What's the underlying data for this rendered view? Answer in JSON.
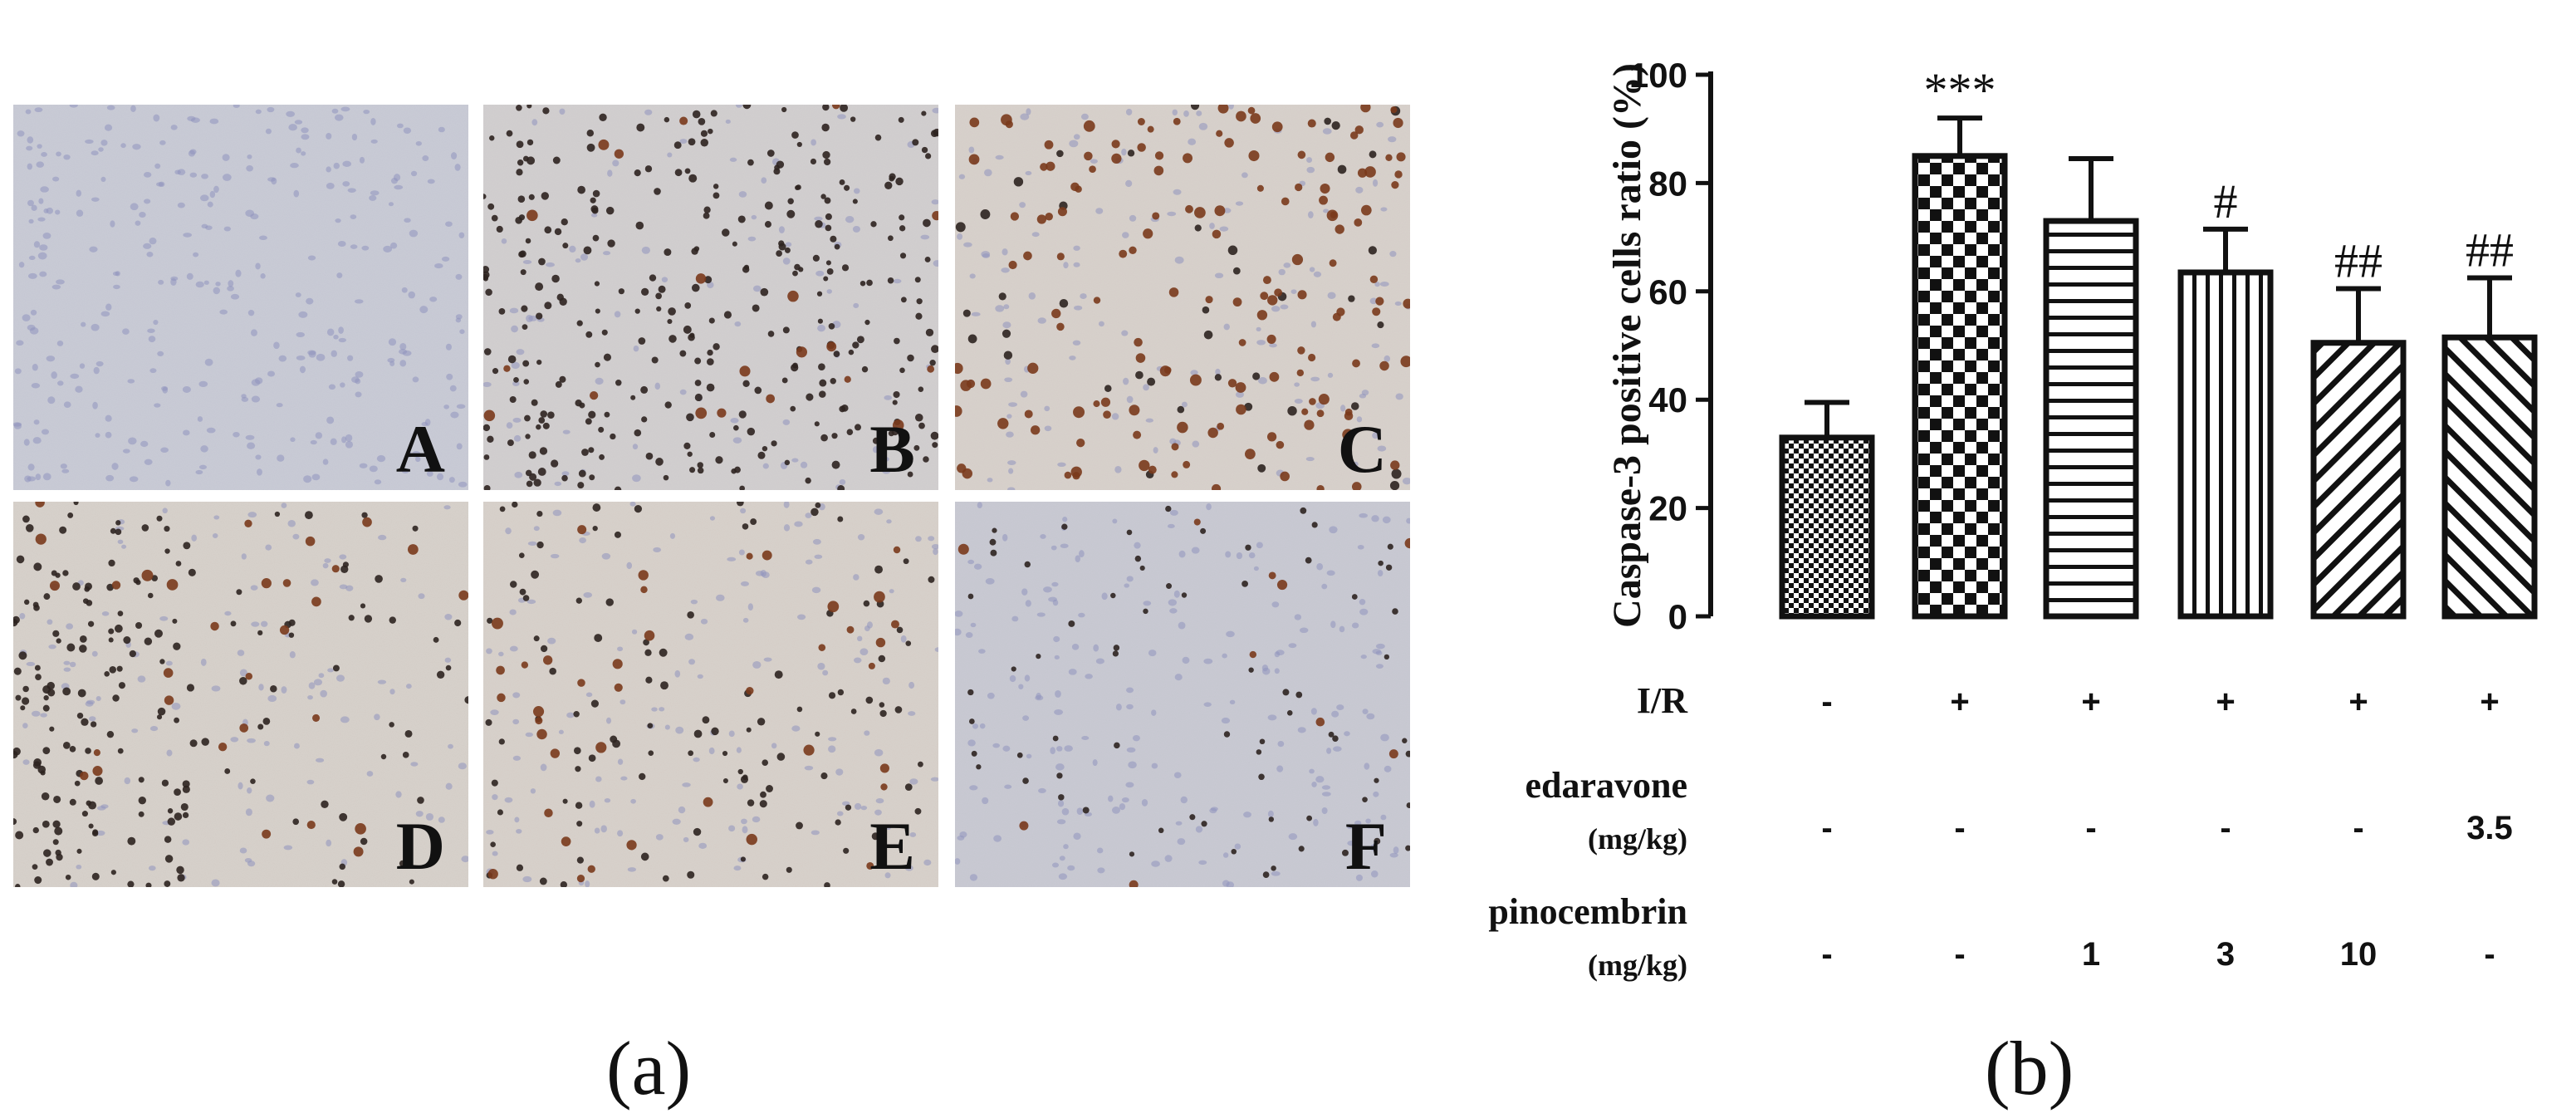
{
  "panel_a": {
    "caption": "(a)",
    "tiles": [
      {
        "letter": "A",
        "stain": "negative"
      },
      {
        "letter": "B",
        "stain": "dense-dark-nuclei"
      },
      {
        "letter": "C",
        "stain": "brown-positive"
      },
      {
        "letter": "D",
        "stain": "dark-nuclei-left"
      },
      {
        "letter": "E",
        "stain": "sparse-dark-nuclei"
      },
      {
        "letter": "F",
        "stain": "mostly-negative"
      }
    ]
  },
  "panel_b": {
    "caption": "(b)",
    "chart_data": {
      "type": "bar",
      "ylabel": "Caspase-3 positive cells ratio (%)",
      "ylim": [
        0,
        100
      ],
      "yticks": [
        "0",
        "20",
        "40",
        "60",
        "80",
        "100"
      ],
      "values": [
        33,
        85,
        73,
        63.5,
        50.5,
        51.5
      ],
      "errors": [
        6.5,
        7,
        11.5,
        8,
        10,
        11
      ],
      "significance": [
        "",
        "***",
        "",
        "#",
        "##",
        "##"
      ],
      "patterns": [
        "fine-check",
        "checkerboard",
        "horizontal-lines",
        "vertical-lines",
        "diagonal-forward",
        "diagonal-backward"
      ],
      "conditions": [
        {
          "label": "I/R",
          "unit": "",
          "values": [
            "-",
            "+",
            "+",
            "+",
            "+",
            "+"
          ]
        },
        {
          "label": "edaravone",
          "unit": "(mg/kg)",
          "values": [
            "-",
            "-",
            "-",
            "-",
            "-",
            "3.5"
          ]
        },
        {
          "label": "pinocembrin",
          "unit": "(mg/kg)",
          "values": [
            "-",
            "-",
            "1",
            "3",
            "10",
            "-"
          ]
        }
      ],
      "grid": false,
      "legend": "none"
    }
  }
}
